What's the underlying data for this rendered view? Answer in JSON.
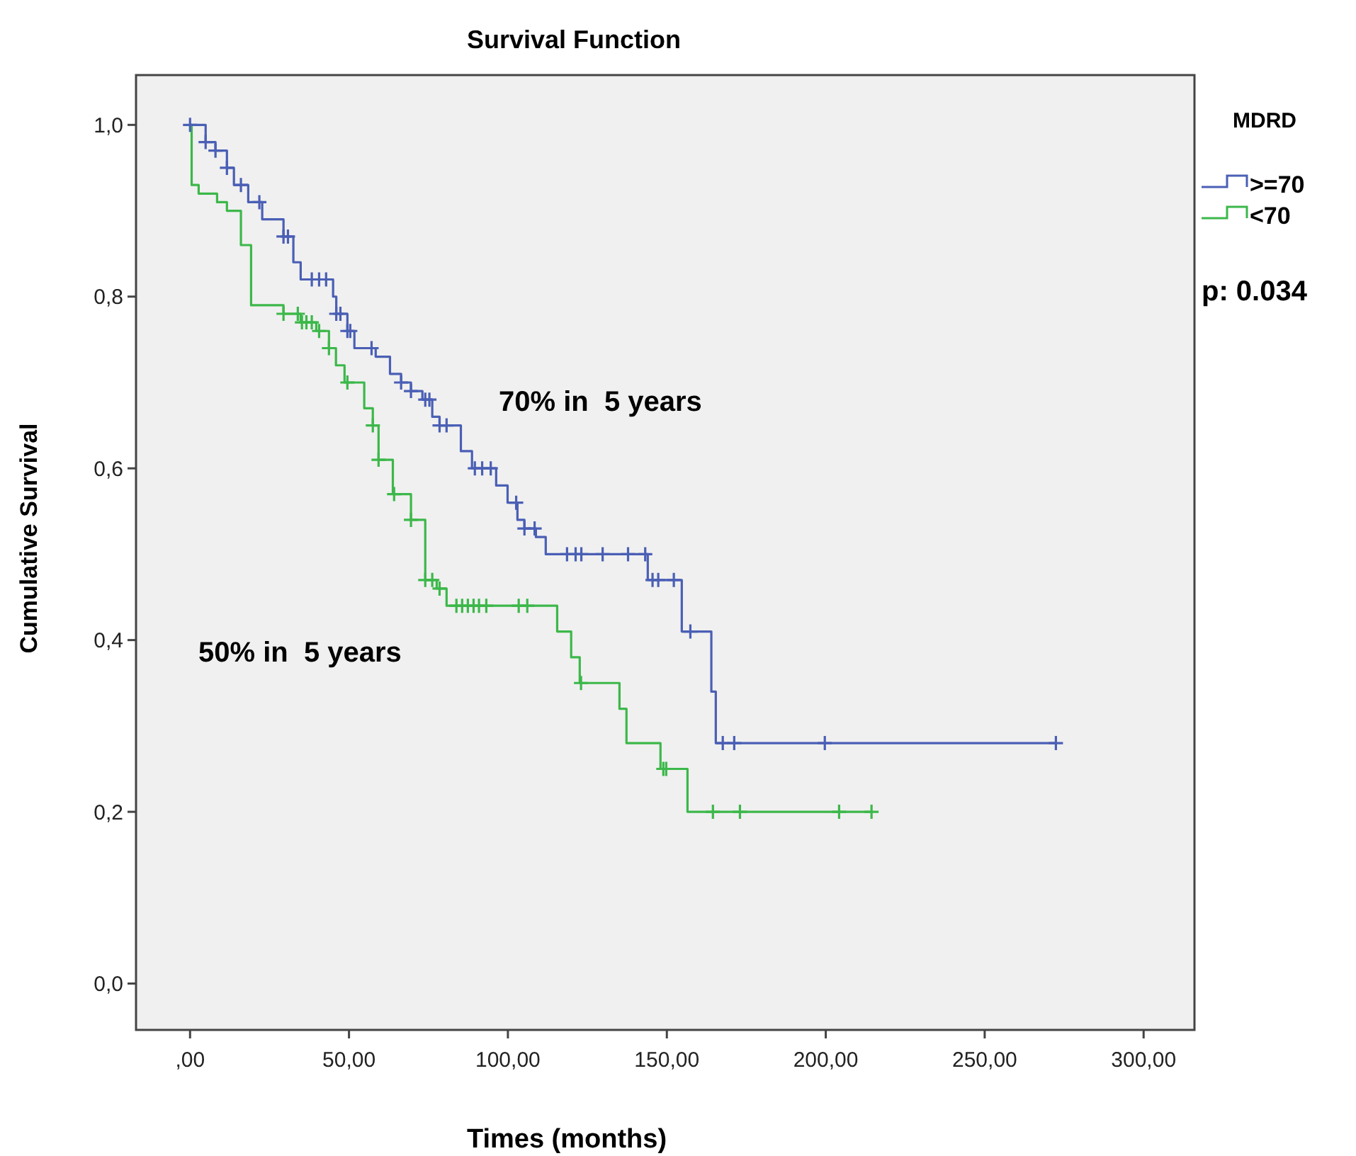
{
  "chart_data": {
    "type": "step",
    "title": "Survival Function",
    "xlabel": "Times (months)",
    "ylabel": "Cumulative Survival",
    "legend_title": "MDRD",
    "legend": "right",
    "marker": "none",
    "xlim": [
      -17,
      316
    ],
    "ylim": [
      -0.054,
      1.058
    ],
    "xticks": [
      {
        "value": 0,
        "label": ",00"
      },
      {
        "value": 50,
        "label": "50,00"
      },
      {
        "value": 100,
        "label": "100,00"
      },
      {
        "value": 150,
        "label": "150,00"
      },
      {
        "value": 200,
        "label": "200,00"
      },
      {
        "value": 250,
        "label": "250,00"
      },
      {
        "value": 300,
        "label": "300,00"
      }
    ],
    "yticks": [
      {
        "value": 0,
        "label": "0,0"
      },
      {
        "value": 0.2,
        "label": "0,2"
      },
      {
        "value": 0.4,
        "label": "0,4"
      },
      {
        "value": 0.6,
        "label": "0,6"
      },
      {
        "value": 0.8,
        "label": "0,8"
      },
      {
        "value": 1,
        "label": "1,0"
      }
    ],
    "annotations": [
      "70% in  5 years",
      "50% in  5 years",
      "p: 0.034"
    ],
    "series": [
      {
        "name": ">=70",
        "color": "#4a5fb5",
        "x": [
          0,
          4.9,
          8,
          11.6,
          13.8,
          18.3,
          22.7,
          29.4,
          32.5,
          34.8,
          45,
          46,
          49.5,
          51.7,
          58.4,
          62.9,
          66.4,
          69.5,
          73.1,
          76.2,
          78.5,
          85.2,
          88.7,
          96.3,
          99.9,
          103,
          105.2,
          108.8,
          111.9,
          144,
          154.7,
          164,
          165.4,
          272.4
        ],
        "values": [
          1,
          0.98,
          0.97,
          0.95,
          0.93,
          0.91,
          0.89,
          0.87,
          0.84,
          0.82,
          0.8,
          0.78,
          0.76,
          0.74,
          0.73,
          0.71,
          0.7,
          0.69,
          0.68,
          0.66,
          0.65,
          0.62,
          0.6,
          0.58,
          0.56,
          0.54,
          0.53,
          0.52,
          0.5,
          0.47,
          0.41,
          0.34,
          0.28,
          0.28
        ]
      },
      {
        "name": "<70",
        "color": "#3cb84a",
        "x": [
          0,
          0.5,
          2.7,
          8.5,
          11.6,
          16,
          19.2,
          29.4,
          34.8,
          39.7,
          43.7,
          45.9,
          48.6,
          54.8,
          57.5,
          59.3,
          63.8,
          69.5,
          74,
          77.6,
          80.7,
          115.5,
          119.9,
          122.6,
          135.1,
          137.3,
          148,
          156.5,
          214.4
        ],
        "values": [
          1,
          0.93,
          0.92,
          0.91,
          0.9,
          0.86,
          0.79,
          0.78,
          0.77,
          0.76,
          0.74,
          0.72,
          0.7,
          0.67,
          0.65,
          0.61,
          0.57,
          0.54,
          0.47,
          0.46,
          0.44,
          0.41,
          0.38,
          0.35,
          0.32,
          0.28,
          0.25,
          0.2,
          0.2
        ]
      },
      {
        "type": "scatter",
        "marker": "cross",
        "color": "#4a5fb5",
        "x": [
          0,
          4.9,
          8,
          11.6,
          16,
          21.8,
          29.4,
          30.8,
          38.3,
          40.6,
          42.8,
          46,
          47.3,
          49.5,
          50.4,
          57.1,
          66.4,
          69.5,
          74,
          75.3,
          78.5,
          80.7,
          89.6,
          91.9,
          94.6,
          102.6,
          105.2,
          108.4,
          118.6,
          121.3,
          123.1,
          129.8,
          137.8,
          143.2,
          145.5,
          147.3,
          152.2,
          157.4,
          167.6,
          171.2,
          199.7,
          272.4
        ],
        "values": [
          1,
          0.98,
          0.97,
          0.95,
          0.93,
          0.91,
          0.87,
          0.87,
          0.82,
          0.82,
          0.82,
          0.78,
          0.78,
          0.76,
          0.76,
          0.74,
          0.7,
          0.69,
          0.68,
          0.68,
          0.65,
          0.65,
          0.6,
          0.6,
          0.6,
          0.56,
          0.53,
          0.53,
          0.5,
          0.5,
          0.5,
          0.5,
          0.5,
          0.5,
          0.47,
          0.47,
          0.47,
          0.41,
          0.28,
          0.28,
          0.28,
          0.28
        ]
      },
      {
        "type": "scatter",
        "marker": "cross",
        "color": "#3cb84a",
        "x": [
          29.4,
          33.9,
          35.2,
          36.6,
          38.3,
          40.6,
          43.7,
          49.5,
          57.5,
          59.3,
          64.2,
          69.5,
          74,
          76.2,
          78.5,
          83.8,
          85.6,
          87.4,
          89.2,
          90.9,
          93.2,
          103.4,
          106.1,
          123,
          148.9,
          149.8,
          164.5,
          173,
          204.2,
          214.4
        ],
        "values": [
          0.78,
          0.78,
          0.77,
          0.77,
          0.77,
          0.76,
          0.74,
          0.7,
          0.65,
          0.61,
          0.57,
          0.54,
          0.47,
          0.47,
          0.46,
          0.44,
          0.44,
          0.44,
          0.44,
          0.44,
          0.44,
          0.44,
          0.44,
          0.35,
          0.25,
          0.25,
          0.2,
          0.2,
          0.2,
          0.2
        ]
      }
    ]
  }
}
